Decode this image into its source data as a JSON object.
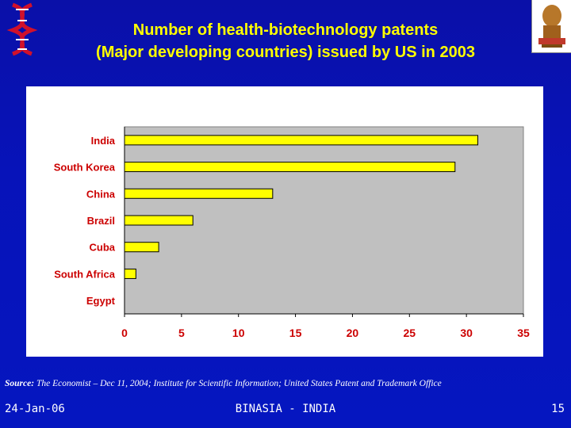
{
  "title": {
    "line1": "Number of health-biotechnology patents",
    "line2": "(Major developing countries) issued by US in 2003"
  },
  "chart_data": {
    "type": "bar",
    "orientation": "horizontal",
    "categories": [
      "India",
      "South Korea",
      "China",
      "Brazil",
      "Cuba",
      "South Africa",
      "Egypt"
    ],
    "values": [
      31,
      29,
      13,
      6,
      3,
      1,
      0
    ],
    "xlim": [
      0,
      35
    ],
    "xticks": [
      0,
      5,
      10,
      15,
      20,
      25,
      30,
      35
    ],
    "grid": false,
    "legend": "none",
    "bar_color": "#ffff00",
    "plot_background": "#c0c0c0"
  },
  "source": {
    "label": "Source:",
    "text": " The Economist – Dec 11, 2004; Institute for Scientific Information; United States Patent and Trademark Office"
  },
  "footer": {
    "date": "24-Jan-06",
    "center": "BINASIA - INDIA",
    "page": "15"
  },
  "colors": {
    "background": "#0713b9",
    "title": "#ffff00",
    "axis_text": "#cc0000"
  },
  "logos": {
    "left": "dna-helix-logo",
    "right": "emblem-logo"
  }
}
